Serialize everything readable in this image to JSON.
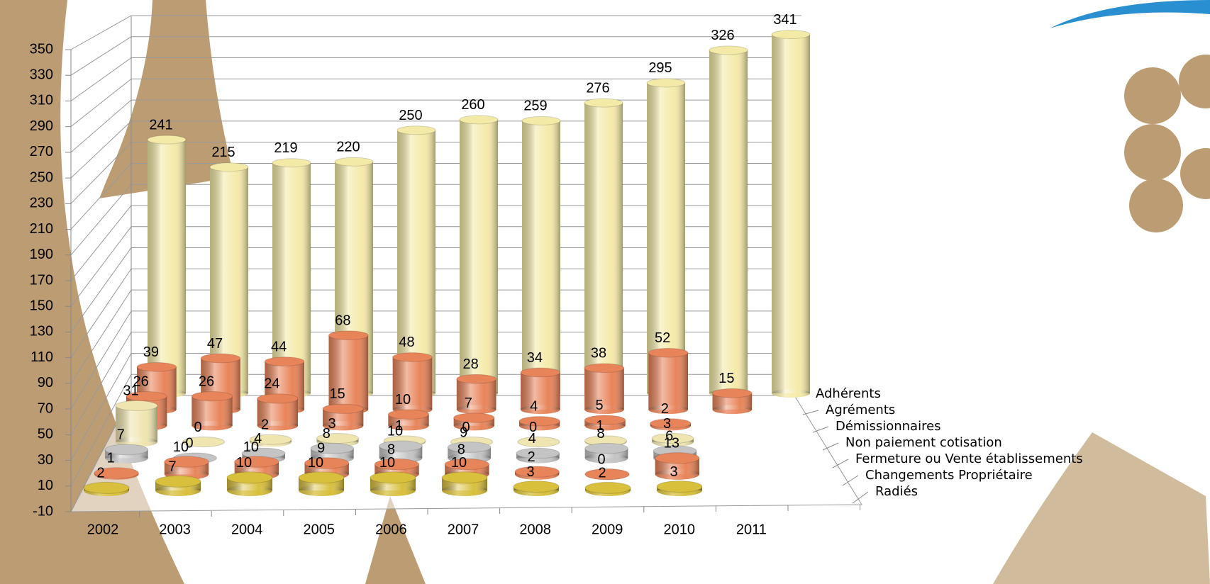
{
  "chart_data": {
    "type": "bar3d",
    "categories": [
      "2002",
      "2003",
      "2004",
      "2005",
      "2006",
      "2007",
      "2008",
      "2009",
      "2010",
      "2011",
      null
    ],
    "series": [
      {
        "name": "Radiés",
        "color": "#d8bf3c",
        "values": [
          2,
          7,
          10,
          10,
          10,
          10,
          3,
          2,
          3,
          null,
          null
        ]
      },
      {
        "name": "Changements Propriétaire",
        "color": "#e8845a",
        "values": [
          1,
          10,
          10,
          9,
          8,
          8,
          2,
          0,
          13,
          null,
          null
        ]
      },
      {
        "name": "Fermeture ou Vente établissements",
        "color": "#c4c4c4",
        "values": [
          7,
          0,
          4,
          8,
          10,
          9,
          4,
          8,
          6,
          null,
          null
        ]
      },
      {
        "name": "Non paiement cotisation",
        "color": "#efe5b0",
        "values": [
          31,
          0,
          2,
          3,
          1,
          0,
          0,
          1,
          3,
          null,
          null
        ]
      },
      {
        "name": "Démissionnaires",
        "color": "#e8845a",
        "values": [
          26,
          26,
          24,
          15,
          10,
          7,
          4,
          5,
          2,
          null,
          null
        ]
      },
      {
        "name": "Agréments",
        "color": "#e8845a",
        "values": [
          39,
          47,
          44,
          68,
          48,
          28,
          34,
          38,
          52,
          15,
          null
        ]
      },
      {
        "name": "Adhérents",
        "color": "#f4eaa8",
        "values": [
          241,
          215,
          219,
          220,
          250,
          260,
          259,
          276,
          295,
          326,
          341
        ]
      }
    ],
    "ylim": [
      -10,
      350
    ],
    "yticks": [
      -10,
      10,
      30,
      50,
      70,
      90,
      110,
      130,
      150,
      170,
      190,
      210,
      230,
      250,
      270,
      290,
      310,
      330,
      350
    ],
    "grid": true
  }
}
